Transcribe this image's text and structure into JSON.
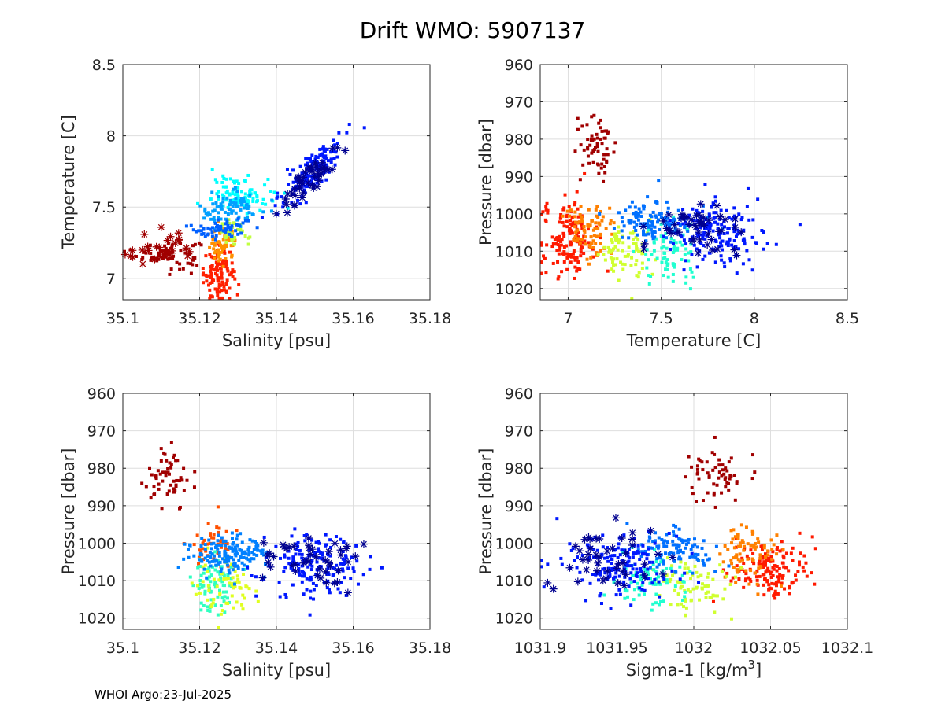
{
  "title": "Drift WMO: 5907137",
  "footer": "WHOI Argo:23-Jul-2025",
  "colormap": [
    "#00008f",
    "#0000ff",
    "#0080ff",
    "#00ffff",
    "#80ff80",
    "#ffff00",
    "#ff8000",
    "#ff0000",
    "#800000"
  ],
  "chart_data": [
    {
      "id": "ts",
      "type": "scatter",
      "xlabel": "Salinity [psu]",
      "ylabel": "Temperature [C]",
      "xlim": [
        35.1,
        35.18
      ],
      "ylim": [
        6.85,
        8.5
      ],
      "yreverse": false,
      "xticks": [
        35.1,
        35.12,
        35.14,
        35.16,
        35.18
      ],
      "xtick_labels": [
        "35.1",
        "35.12",
        "35.14",
        "35.16",
        "35.18"
      ],
      "yticks": [
        7,
        7.5,
        8,
        8.5
      ],
      "ytick_labels": [
        "7",
        "7.5",
        "8",
        "8.5"
      ],
      "grid": true,
      "clusters": [
        {
          "cx": 35.112,
          "cy": 7.17,
          "sx": 0.004,
          "sy": 0.05,
          "n": 75,
          "color": "#a00000",
          "rot": 0
        },
        {
          "cx": 35.125,
          "cy": 7.03,
          "sx": 0.002,
          "sy": 0.09,
          "n": 110,
          "color": "#ff2000",
          "rot": 0
        },
        {
          "cx": 35.126,
          "cy": 7.22,
          "sx": 0.002,
          "sy": 0.06,
          "n": 60,
          "color": "#ff9000",
          "rot": 0
        },
        {
          "cx": 35.129,
          "cy": 7.32,
          "sx": 0.002,
          "sy": 0.05,
          "n": 40,
          "color": "#c0ff40",
          "rot": 0
        },
        {
          "cx": 35.131,
          "cy": 7.6,
          "sx": 0.004,
          "sy": 0.06,
          "n": 90,
          "color": "#00ffff",
          "rot": 0
        },
        {
          "cx": 35.128,
          "cy": 7.48,
          "sx": 0.004,
          "sy": 0.06,
          "n": 80,
          "color": "#00a0ff",
          "rot": 0
        },
        {
          "cx": 35.125,
          "cy": 7.35,
          "sx": 0.004,
          "sy": 0.04,
          "n": 60,
          "color": "#0060ff",
          "rot": 0
        },
        {
          "cx": 35.149,
          "cy": 7.75,
          "sx": 0.006,
          "sy": 0.14,
          "n": 160,
          "color": "#0018ff",
          "rot": 0.9
        },
        {
          "cx": 35.149,
          "cy": 7.7,
          "sx": 0.006,
          "sy": 0.14,
          "n": 45,
          "color": "#00008f",
          "rot": 0.9,
          "marker": "star"
        },
        {
          "cx": 35.11,
          "cy": 7.2,
          "sx": 0.005,
          "sy": 0.05,
          "n": 25,
          "color": "#a00000",
          "rot": 0,
          "marker": "star"
        }
      ]
    },
    {
      "id": "tp",
      "type": "scatter",
      "xlabel": "Temperature [C]",
      "ylabel": "Pressure [dbar]",
      "xlim": [
        6.85,
        8.5
      ],
      "ylim": [
        960,
        1023
      ],
      "yreverse": true,
      "xticks": [
        7,
        7.5,
        8,
        8.5
      ],
      "xtick_labels": [
        "7",
        "7.5",
        "8",
        "8.5"
      ],
      "yticks": [
        960,
        970,
        980,
        990,
        1000,
        1010,
        1020
      ],
      "ytick_labels": [
        "960",
        "970",
        "980",
        "990",
        "1000",
        "1010",
        "1020"
      ],
      "grid": true,
      "clusters": [
        {
          "cx": 7.16,
          "cy": 982,
          "sx": 0.05,
          "sy": 4,
          "n": 60,
          "color": "#a00000",
          "rot": 0
        },
        {
          "cx": 7.0,
          "cy": 1007,
          "sx": 0.07,
          "sy": 5,
          "n": 150,
          "color": "#ff1a00",
          "rot": 0
        },
        {
          "cx": 7.1,
          "cy": 1004,
          "sx": 0.07,
          "sy": 4,
          "n": 80,
          "color": "#ff8000",
          "rot": 0
        },
        {
          "cx": 7.3,
          "cy": 1010,
          "sx": 0.07,
          "sy": 4,
          "n": 80,
          "color": "#d0ff30",
          "rot": 0
        },
        {
          "cx": 7.55,
          "cy": 1010,
          "sx": 0.08,
          "sy": 4,
          "n": 80,
          "color": "#20ffd0",
          "rot": 0
        },
        {
          "cx": 7.45,
          "cy": 1002,
          "sx": 0.1,
          "sy": 3,
          "n": 120,
          "color": "#0070ff",
          "rot": 0
        },
        {
          "cx": 7.8,
          "cy": 1005,
          "sx": 0.12,
          "sy": 4,
          "n": 170,
          "color": "#0018ff",
          "rot": 0
        },
        {
          "cx": 7.7,
          "cy": 1004,
          "sx": 0.12,
          "sy": 4,
          "n": 50,
          "color": "#00008f",
          "rot": 0,
          "marker": "star"
        }
      ]
    },
    {
      "id": "sp",
      "type": "scatter",
      "xlabel": "Salinity [psu]",
      "ylabel": "Pressure [dbar]",
      "xlim": [
        35.1,
        35.18
      ],
      "ylim": [
        960,
        1023
      ],
      "yreverse": true,
      "xticks": [
        35.1,
        35.12,
        35.14,
        35.16,
        35.18
      ],
      "xtick_labels": [
        "35.1",
        "35.12",
        "35.14",
        "35.16",
        "35.18"
      ],
      "yticks": [
        960,
        970,
        980,
        990,
        1000,
        1010,
        1020
      ],
      "ytick_labels": [
        "960",
        "970",
        "980",
        "990",
        "1000",
        "1010",
        "1020"
      ],
      "grid": true,
      "clusters": [
        {
          "cx": 35.112,
          "cy": 983,
          "sx": 0.003,
          "sy": 4,
          "n": 60,
          "color": "#a00000",
          "rot": 0
        },
        {
          "cx": 35.124,
          "cy": 1000,
          "sx": 0.003,
          "sy": 3,
          "n": 50,
          "color": "#ff5000",
          "rot": 0
        },
        {
          "cx": 35.124,
          "cy": 1011,
          "sx": 0.003,
          "sy": 4,
          "n": 80,
          "color": "#30ffc0",
          "rot": 0
        },
        {
          "cx": 35.127,
          "cy": 1012,
          "sx": 0.004,
          "sy": 4,
          "n": 60,
          "color": "#e0ff20",
          "rot": 0
        },
        {
          "cx": 35.128,
          "cy": 1003,
          "sx": 0.005,
          "sy": 2.5,
          "n": 150,
          "color": "#0080ff",
          "rot": 0
        },
        {
          "cx": 35.15,
          "cy": 1006,
          "sx": 0.006,
          "sy": 4,
          "n": 170,
          "color": "#0018ff",
          "rot": 0
        },
        {
          "cx": 35.148,
          "cy": 1004,
          "sx": 0.007,
          "sy": 4,
          "n": 45,
          "color": "#00008f",
          "rot": 0,
          "marker": "star"
        }
      ]
    },
    {
      "id": "sigp",
      "type": "scatter",
      "xlabel": "Sigma-1 [kg/m",
      "xlabel_sup": "3",
      "xlabel_end": "]",
      "ylabel": "Pressure [dbar]",
      "xlim": [
        1031.9,
        1032.1
      ],
      "ylim": [
        960,
        1023
      ],
      "yreverse": true,
      "xticks": [
        1031.9,
        1031.95,
        1032,
        1032.05,
        1032.1
      ],
      "xtick_labels": [
        "1031.9",
        "1031.95",
        "1032",
        "1032.05",
        "1032.1"
      ],
      "yticks": [
        960,
        970,
        980,
        990,
        1000,
        1010,
        1020
      ],
      "ytick_labels": [
        "960",
        "970",
        "980",
        "990",
        "1000",
        "1010",
        "1020"
      ],
      "grid": true,
      "clusters": [
        {
          "cx": 1032.015,
          "cy": 982,
          "sx": 0.01,
          "sy": 4,
          "n": 60,
          "color": "#a00000",
          "rot": 0
        },
        {
          "cx": 1032.05,
          "cy": 1007,
          "sx": 0.013,
          "sy": 4,
          "n": 150,
          "color": "#ff1a00",
          "rot": 0
        },
        {
          "cx": 1032.035,
          "cy": 1003,
          "sx": 0.012,
          "sy": 4,
          "n": 80,
          "color": "#ff8000",
          "rot": 0
        },
        {
          "cx": 1032.0,
          "cy": 1011,
          "sx": 0.012,
          "sy": 4,
          "n": 80,
          "color": "#d0ff30",
          "rot": 0
        },
        {
          "cx": 1031.97,
          "cy": 1010,
          "sx": 0.012,
          "sy": 4,
          "n": 80,
          "color": "#20ffd0",
          "rot": 0
        },
        {
          "cx": 1031.985,
          "cy": 1002,
          "sx": 0.015,
          "sy": 3,
          "n": 110,
          "color": "#0070ff",
          "rot": 0
        },
        {
          "cx": 1031.95,
          "cy": 1006,
          "sx": 0.02,
          "sy": 4,
          "n": 170,
          "color": "#0018ff",
          "rot": 0
        },
        {
          "cx": 1031.94,
          "cy": 1004,
          "sx": 0.02,
          "sy": 4,
          "n": 45,
          "color": "#00008f",
          "rot": 0,
          "marker": "star"
        }
      ]
    }
  ]
}
